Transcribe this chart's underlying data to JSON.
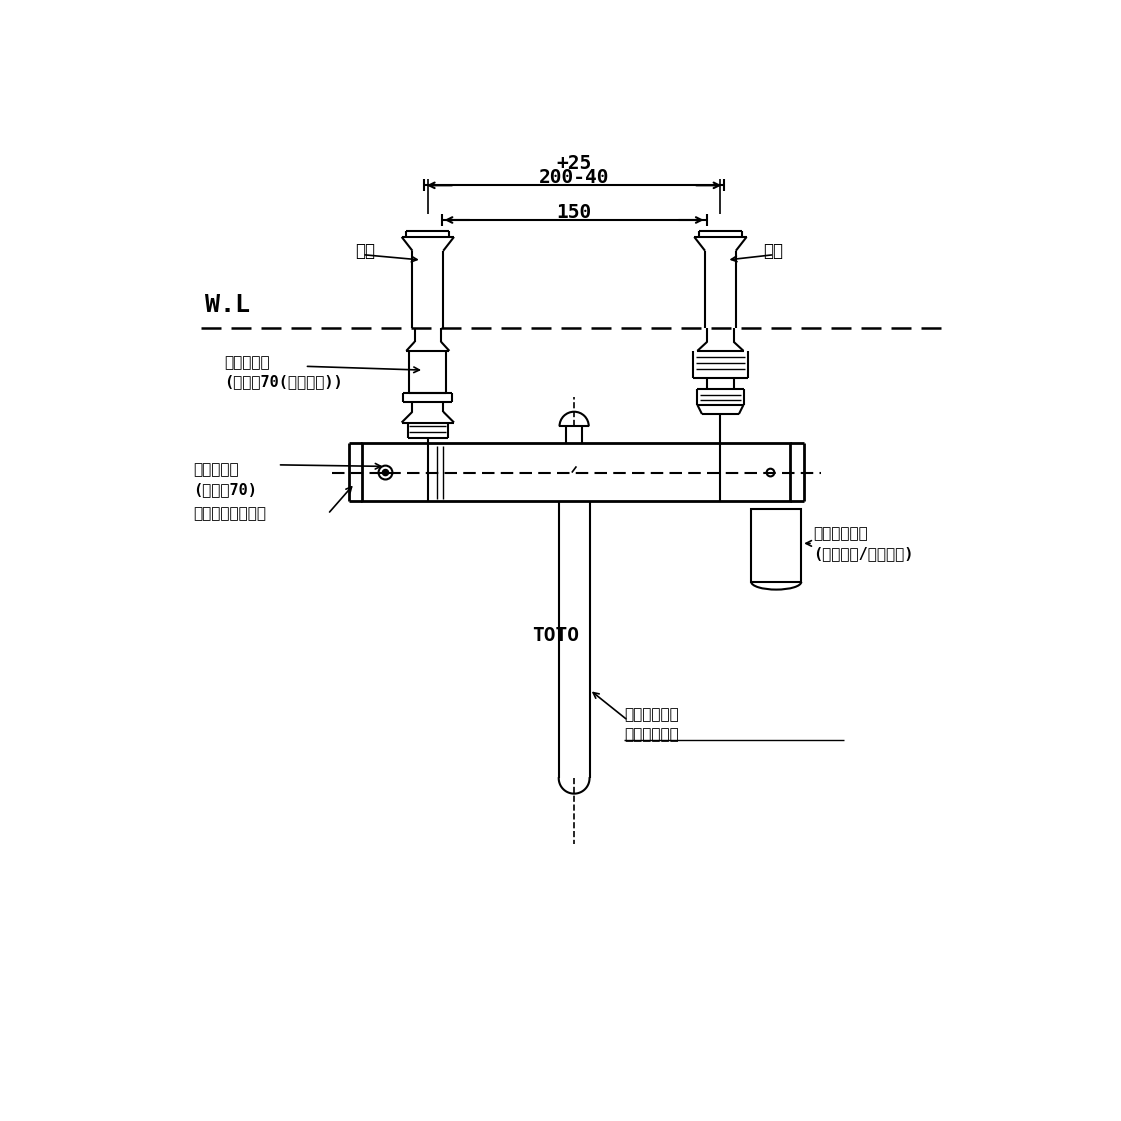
{
  "bg_color": "#ffffff",
  "line_color": "#000000",
  "dim_200_40_text": "200-40",
  "dim_25_text": "+25",
  "dim_150_text": "150",
  "wl_text": "W.L",
  "hot_label": "温側",
  "cold_label": "水側",
  "heat_cover_label": "断熱カバー\n(グレー70(つや消し))",
  "safety_btn_label": "安全ボタン\n(グレー70)",
  "temp_handle_label": "温度調節ハンドル",
  "switch_handle_label": "切替ハンドル\n(シャワー/スパウト)",
  "spout_label": "スパウト回転\n角度規制なし",
  "toto_label": "TOTO",
  "font_size_label": 11,
  "font_size_dim": 14,
  "font_size_wl": 16
}
